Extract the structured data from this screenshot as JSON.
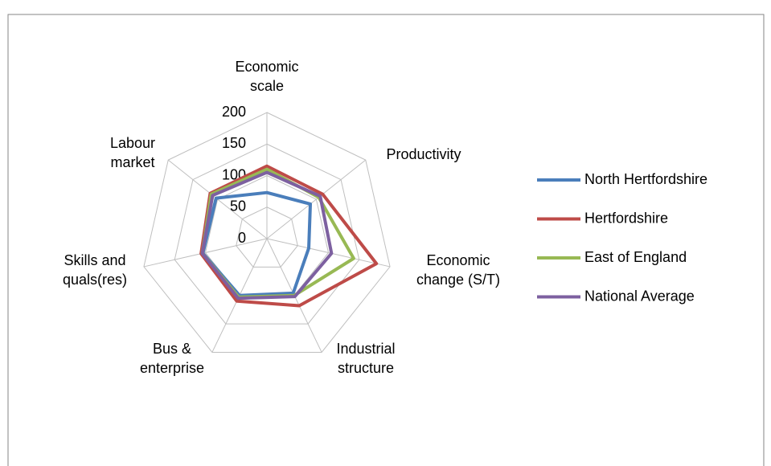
{
  "chart_data": {
    "type": "radar",
    "categories": [
      "Economic\nscale",
      "Productivity",
      "Economic\nchange (S/T)",
      "Industrial\nstructure",
      "Bus &\nenterprise",
      "Skills and\nquals(res)",
      "Labour\nmarket"
    ],
    "series": [
      {
        "name": "North Hertfordshire",
        "color": "#4a7ebb",
        "values": [
          73,
          88,
          68,
          96,
          100,
          104,
          103
        ]
      },
      {
        "name": "Hertfordshire",
        "color": "#be4b48",
        "values": [
          115,
          113,
          178,
          118,
          110,
          107,
          115
        ]
      },
      {
        "name": "East of England",
        "color": "#98b954",
        "values": [
          110,
          105,
          141,
          100,
          103,
          105,
          113
        ]
      },
      {
        "name": "National Average",
        "color": "#7d60a0",
        "values": [
          105,
          108,
          105,
          102,
          105,
          105,
          110
        ]
      }
    ],
    "ylim": [
      0,
      200
    ],
    "yticks": [
      0,
      50,
      100,
      150,
      200
    ],
    "grid": true
  }
}
